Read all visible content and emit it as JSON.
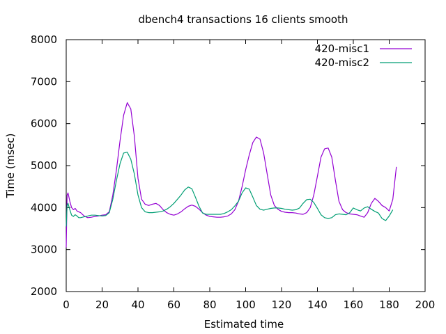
{
  "chart_data": {
    "type": "line",
    "title": "dbench4 transactions 16 clients smooth",
    "xlabel": "Estimated time",
    "ylabel": "Time (msec)",
    "xlim": [
      0,
      200
    ],
    "ylim": [
      2000,
      8000
    ],
    "x_ticks": [
      "0",
      "20",
      "40",
      "60",
      "80",
      "100",
      "120",
      "140",
      "160",
      "180",
      "200"
    ],
    "y_ticks": [
      "2000",
      "3000",
      "4000",
      "5000",
      "6000",
      "7000",
      "8000"
    ],
    "grid": false,
    "legend_position": "top-right",
    "series": [
      {
        "name": "420-misc1",
        "color": "#9400d3",
        "points": [
          [
            0,
            3050
          ],
          [
            0.5,
            4300
          ],
          [
            1,
            4350
          ],
          [
            2,
            4150
          ],
          [
            3,
            4000
          ],
          [
            4,
            3950
          ],
          [
            5,
            3980
          ],
          [
            6,
            3920
          ],
          [
            7,
            3900
          ],
          [
            8,
            3880
          ],
          [
            10,
            3800
          ],
          [
            12,
            3760
          ],
          [
            14,
            3770
          ],
          [
            16,
            3790
          ],
          [
            18,
            3800
          ],
          [
            20,
            3820
          ],
          [
            22,
            3830
          ],
          [
            24,
            3900
          ],
          [
            26,
            4300
          ],
          [
            28,
            4900
          ],
          [
            30,
            5600
          ],
          [
            32,
            6200
          ],
          [
            34,
            6500
          ],
          [
            36,
            6350
          ],
          [
            38,
            5700
          ],
          [
            40,
            4700
          ],
          [
            42,
            4200
          ],
          [
            44,
            4080
          ],
          [
            46,
            4050
          ],
          [
            48,
            4080
          ],
          [
            50,
            4100
          ],
          [
            52,
            4050
          ],
          [
            54,
            3950
          ],
          [
            56,
            3880
          ],
          [
            58,
            3840
          ],
          [
            60,
            3820
          ],
          [
            62,
            3850
          ],
          [
            64,
            3900
          ],
          [
            66,
            3970
          ],
          [
            68,
            4030
          ],
          [
            70,
            4060
          ],
          [
            72,
            4030
          ],
          [
            74,
            3960
          ],
          [
            76,
            3880
          ],
          [
            78,
            3820
          ],
          [
            80,
            3790
          ],
          [
            82,
            3780
          ],
          [
            84,
            3770
          ],
          [
            86,
            3770
          ],
          [
            88,
            3780
          ],
          [
            90,
            3800
          ],
          [
            92,
            3850
          ],
          [
            94,
            3950
          ],
          [
            96,
            4150
          ],
          [
            98,
            4500
          ],
          [
            100,
            4900
          ],
          [
            102,
            5250
          ],
          [
            104,
            5550
          ],
          [
            106,
            5680
          ],
          [
            108,
            5630
          ],
          [
            110,
            5300
          ],
          [
            112,
            4800
          ],
          [
            114,
            4300
          ],
          [
            116,
            4050
          ],
          [
            118,
            3960
          ],
          [
            120,
            3910
          ],
          [
            122,
            3890
          ],
          [
            124,
            3880
          ],
          [
            126,
            3880
          ],
          [
            128,
            3870
          ],
          [
            130,
            3850
          ],
          [
            132,
            3840
          ],
          [
            134,
            3880
          ],
          [
            136,
            4000
          ],
          [
            138,
            4300
          ],
          [
            140,
            4750
          ],
          [
            142,
            5200
          ],
          [
            144,
            5400
          ],
          [
            146,
            5420
          ],
          [
            148,
            5200
          ],
          [
            150,
            4650
          ],
          [
            152,
            4150
          ],
          [
            154,
            3950
          ],
          [
            156,
            3880
          ],
          [
            158,
            3850
          ],
          [
            160,
            3840
          ],
          [
            162,
            3830
          ],
          [
            164,
            3800
          ],
          [
            166,
            3770
          ],
          [
            168,
            3880
          ],
          [
            170,
            4100
          ],
          [
            172,
            4220
          ],
          [
            174,
            4150
          ],
          [
            176,
            4050
          ],
          [
            178,
            4000
          ],
          [
            180,
            3920
          ],
          [
            182,
            4200
          ],
          [
            184,
            4970
          ]
        ]
      },
      {
        "name": "420-misc2",
        "color": "#009e73",
        "points": [
          [
            0,
            3550
          ],
          [
            0.5,
            4050
          ],
          [
            1,
            4100
          ],
          [
            2,
            3950
          ],
          [
            3,
            3820
          ],
          [
            4,
            3790
          ],
          [
            5,
            3830
          ],
          [
            6,
            3800
          ],
          [
            7,
            3760
          ],
          [
            8,
            3760
          ],
          [
            10,
            3780
          ],
          [
            12,
            3800
          ],
          [
            14,
            3820
          ],
          [
            16,
            3820
          ],
          [
            18,
            3810
          ],
          [
            20,
            3800
          ],
          [
            22,
            3810
          ],
          [
            24,
            3880
          ],
          [
            26,
            4200
          ],
          [
            28,
            4650
          ],
          [
            30,
            5050
          ],
          [
            32,
            5300
          ],
          [
            34,
            5320
          ],
          [
            36,
            5150
          ],
          [
            38,
            4800
          ],
          [
            40,
            4300
          ],
          [
            42,
            4000
          ],
          [
            44,
            3900
          ],
          [
            46,
            3880
          ],
          [
            48,
            3880
          ],
          [
            50,
            3890
          ],
          [
            52,
            3900
          ],
          [
            54,
            3920
          ],
          [
            56,
            3960
          ],
          [
            58,
            4020
          ],
          [
            60,
            4100
          ],
          [
            62,
            4200
          ],
          [
            64,
            4300
          ],
          [
            66,
            4420
          ],
          [
            68,
            4490
          ],
          [
            70,
            4450
          ],
          [
            72,
            4250
          ],
          [
            74,
            4030
          ],
          [
            76,
            3870
          ],
          [
            78,
            3840
          ],
          [
            80,
            3840
          ],
          [
            82,
            3840
          ],
          [
            84,
            3840
          ],
          [
            86,
            3840
          ],
          [
            88,
            3860
          ],
          [
            90,
            3900
          ],
          [
            92,
            3950
          ],
          [
            94,
            4040
          ],
          [
            96,
            4150
          ],
          [
            98,
            4350
          ],
          [
            100,
            4470
          ],
          [
            102,
            4440
          ],
          [
            104,
            4250
          ],
          [
            106,
            4050
          ],
          [
            108,
            3960
          ],
          [
            110,
            3940
          ],
          [
            112,
            3960
          ],
          [
            114,
            3980
          ],
          [
            116,
            3990
          ],
          [
            118,
            3990
          ],
          [
            120,
            3980
          ],
          [
            122,
            3960
          ],
          [
            124,
            3950
          ],
          [
            126,
            3940
          ],
          [
            128,
            3950
          ],
          [
            130,
            3990
          ],
          [
            132,
            4100
          ],
          [
            134,
            4190
          ],
          [
            136,
            4200
          ],
          [
            138,
            4120
          ],
          [
            140,
            3980
          ],
          [
            142,
            3830
          ],
          [
            144,
            3760
          ],
          [
            146,
            3740
          ],
          [
            148,
            3760
          ],
          [
            150,
            3830
          ],
          [
            152,
            3850
          ],
          [
            154,
            3840
          ],
          [
            156,
            3830
          ],
          [
            158,
            3880
          ],
          [
            160,
            3990
          ],
          [
            162,
            3950
          ],
          [
            164,
            3920
          ],
          [
            166,
            3990
          ],
          [
            168,
            4020
          ],
          [
            170,
            3960
          ],
          [
            172,
            3910
          ],
          [
            174,
            3870
          ],
          [
            176,
            3740
          ],
          [
            178,
            3690
          ],
          [
            180,
            3800
          ],
          [
            182,
            3950
          ]
        ]
      }
    ]
  }
}
